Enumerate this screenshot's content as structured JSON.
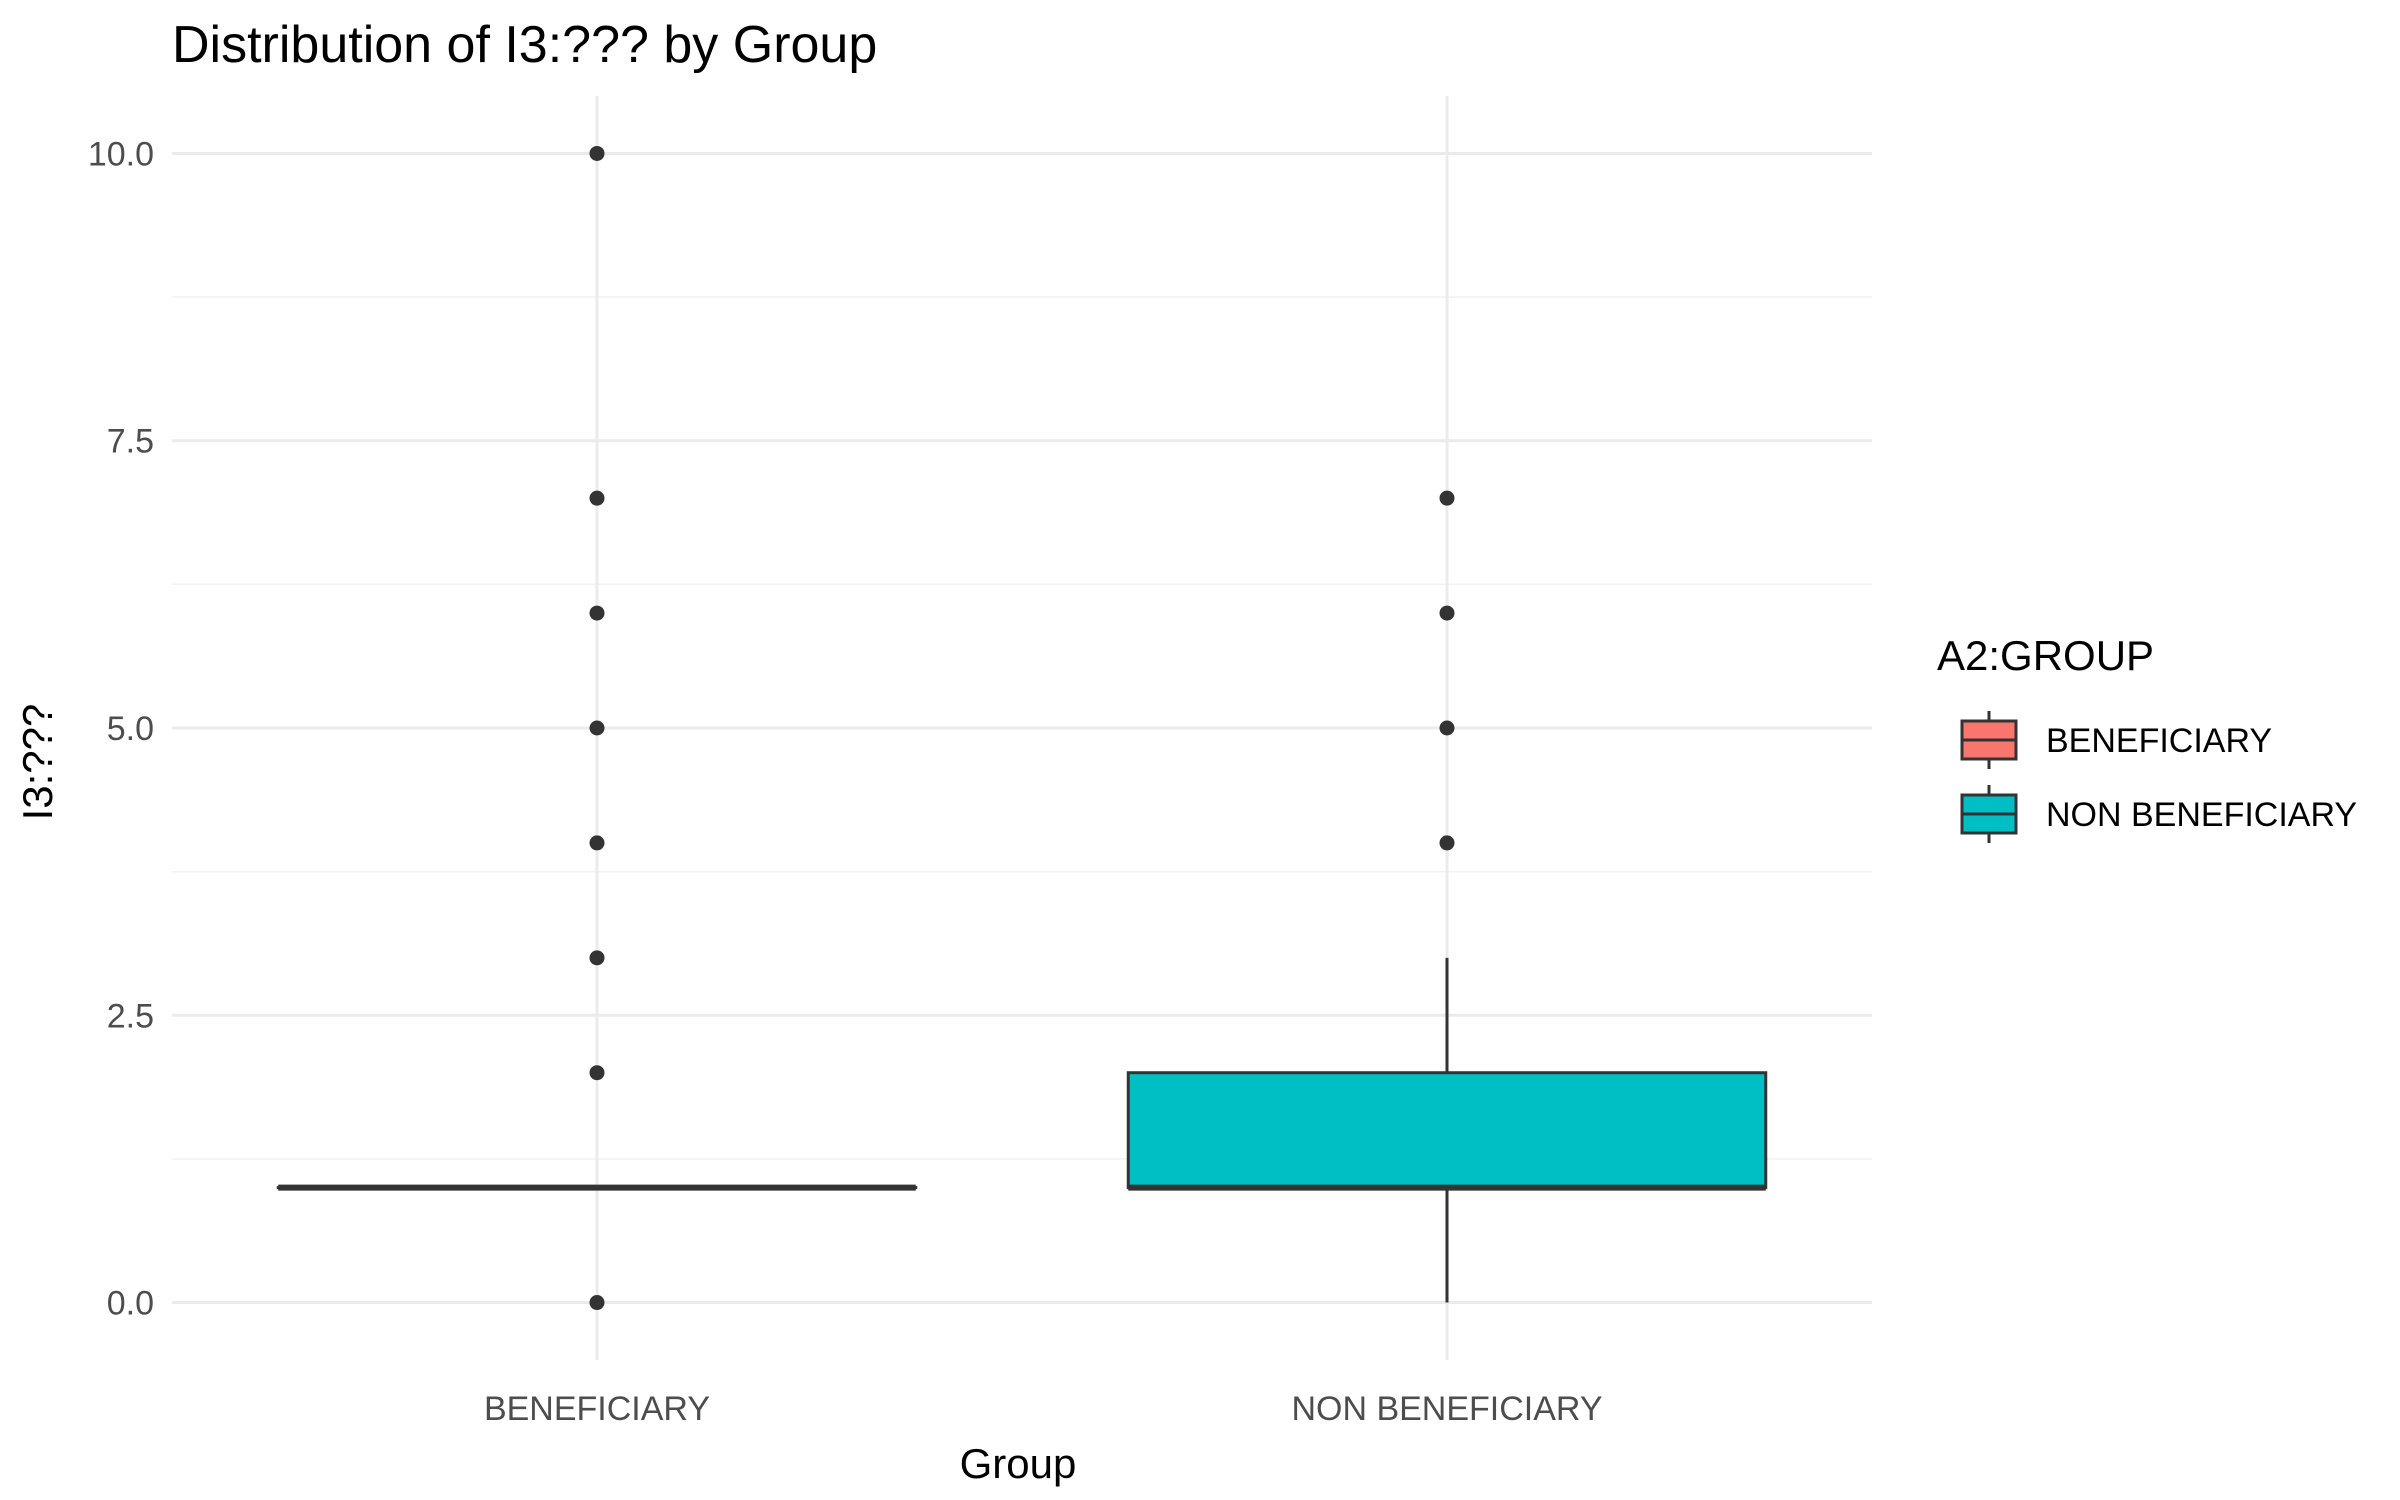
{
  "chart_data": {
    "type": "boxplot",
    "title": "Distribution of I3:??? by Group",
    "xlabel": "Group",
    "ylabel": "I3:???",
    "ylim": [
      -0.5,
      10.5
    ],
    "yticks": [
      0.0,
      2.5,
      5.0,
      7.5,
      10.0
    ],
    "ytick_labels": [
      "0.0",
      "2.5",
      "5.0",
      "7.5",
      "10.0"
    ],
    "grid": true,
    "legend": {
      "title": "A2:GROUP",
      "position": "right",
      "entries": [
        "BENEFICIARY",
        "NON BENEFICIARY"
      ]
    },
    "categories": [
      "BENEFICIARY",
      "NON BENEFICIARY"
    ],
    "series": [
      {
        "name": "BENEFICIARY",
        "color": "#f8766d",
        "q1": 1,
        "median": 1,
        "q3": 1,
        "whisker_low": 1,
        "whisker_high": 1,
        "outliers": [
          0,
          2,
          3,
          4,
          5,
          6,
          7,
          10
        ]
      },
      {
        "name": "NON BENEFICIARY",
        "color": "#00bfc4",
        "q1": 1,
        "median": 1,
        "q3": 2,
        "whisker_low": 0,
        "whisker_high": 3,
        "outliers": [
          4,
          5,
          6,
          7
        ]
      }
    ]
  }
}
